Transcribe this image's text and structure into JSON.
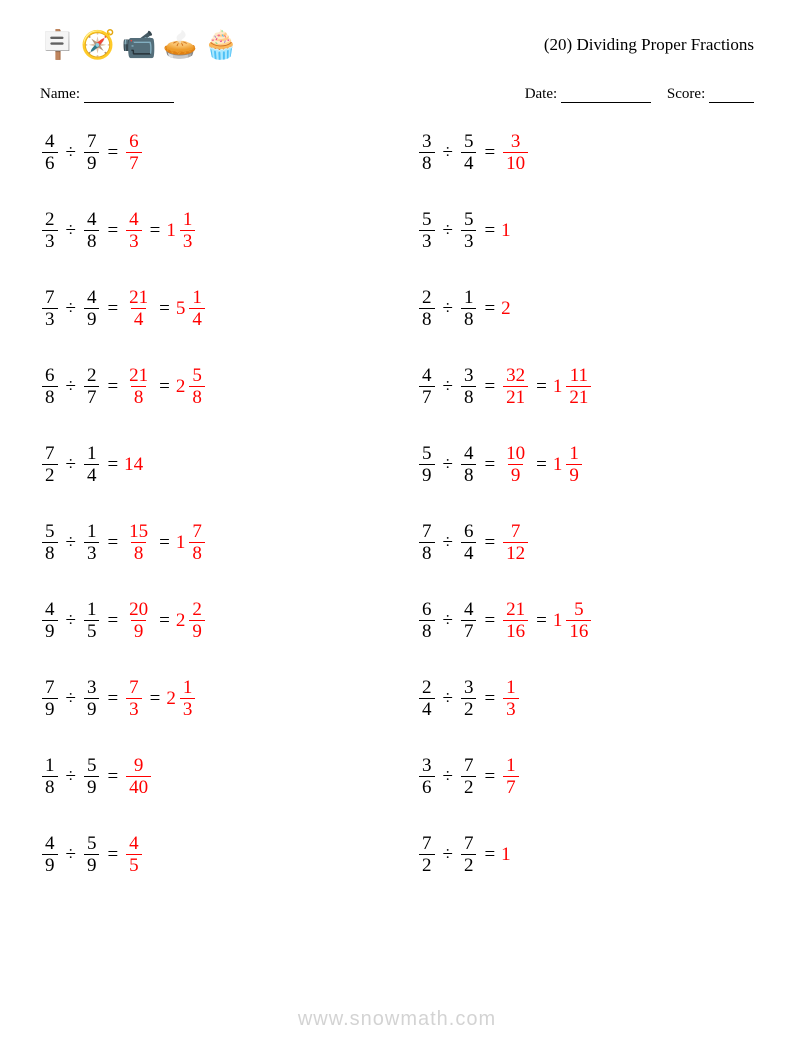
{
  "header": {
    "icons": [
      "🪧",
      "🧭",
      "📹",
      "🥧",
      "🧁"
    ],
    "title": "(20) Dividing Proper Fractions"
  },
  "info": {
    "name_label": "Name:",
    "date_label": "Date:",
    "score_label": "Score:"
  },
  "style": {
    "answer_color": "#ff0000",
    "text_color": "#000000",
    "problem_fontsize": 19,
    "op_symbol": "÷",
    "eq_symbol": "="
  },
  "problems": [
    {
      "a": {
        "n": 4,
        "d": 6
      },
      "b": {
        "n": 7,
        "d": 9
      },
      "ans": {
        "n": 6,
        "d": 7
      }
    },
    {
      "a": {
        "n": 3,
        "d": 8
      },
      "b": {
        "n": 5,
        "d": 4
      },
      "ans": {
        "n": 3,
        "d": 10
      }
    },
    {
      "a": {
        "n": 2,
        "d": 3
      },
      "b": {
        "n": 4,
        "d": 8
      },
      "ans": {
        "n": 4,
        "d": 3
      },
      "mixed": {
        "w": 1,
        "n": 1,
        "d": 3
      }
    },
    {
      "a": {
        "n": 5,
        "d": 3
      },
      "b": {
        "n": 5,
        "d": 3
      },
      "ans_int": 1
    },
    {
      "a": {
        "n": 7,
        "d": 3
      },
      "b": {
        "n": 4,
        "d": 9
      },
      "ans": {
        "n": 21,
        "d": 4
      },
      "mixed": {
        "w": 5,
        "n": 1,
        "d": 4
      }
    },
    {
      "a": {
        "n": 2,
        "d": 8
      },
      "b": {
        "n": 1,
        "d": 8
      },
      "ans_int": 2
    },
    {
      "a": {
        "n": 6,
        "d": 8
      },
      "b": {
        "n": 2,
        "d": 7
      },
      "ans": {
        "n": 21,
        "d": 8
      },
      "mixed": {
        "w": 2,
        "n": 5,
        "d": 8
      }
    },
    {
      "a": {
        "n": 4,
        "d": 7
      },
      "b": {
        "n": 3,
        "d": 8
      },
      "ans": {
        "n": 32,
        "d": 21
      },
      "mixed": {
        "w": 1,
        "n": 11,
        "d": 21
      }
    },
    {
      "a": {
        "n": 7,
        "d": 2
      },
      "b": {
        "n": 1,
        "d": 4
      },
      "ans_int": 14
    },
    {
      "a": {
        "n": 5,
        "d": 9
      },
      "b": {
        "n": 4,
        "d": 8
      },
      "ans": {
        "n": 10,
        "d": 9
      },
      "mixed": {
        "w": 1,
        "n": 1,
        "d": 9
      }
    },
    {
      "a": {
        "n": 5,
        "d": 8
      },
      "b": {
        "n": 1,
        "d": 3
      },
      "ans": {
        "n": 15,
        "d": 8
      },
      "mixed": {
        "w": 1,
        "n": 7,
        "d": 8
      }
    },
    {
      "a": {
        "n": 7,
        "d": 8
      },
      "b": {
        "n": 6,
        "d": 4
      },
      "ans": {
        "n": 7,
        "d": 12
      }
    },
    {
      "a": {
        "n": 4,
        "d": 9
      },
      "b": {
        "n": 1,
        "d": 5
      },
      "ans": {
        "n": 20,
        "d": 9
      },
      "mixed": {
        "w": 2,
        "n": 2,
        "d": 9
      }
    },
    {
      "a": {
        "n": 6,
        "d": 8
      },
      "b": {
        "n": 4,
        "d": 7
      },
      "ans": {
        "n": 21,
        "d": 16
      },
      "mixed": {
        "w": 1,
        "n": 5,
        "d": 16
      }
    },
    {
      "a": {
        "n": 7,
        "d": 9
      },
      "b": {
        "n": 3,
        "d": 9
      },
      "ans": {
        "n": 7,
        "d": 3
      },
      "mixed": {
        "w": 2,
        "n": 1,
        "d": 3
      }
    },
    {
      "a": {
        "n": 2,
        "d": 4
      },
      "b": {
        "n": 3,
        "d": 2
      },
      "ans": {
        "n": 1,
        "d": 3
      }
    },
    {
      "a": {
        "n": 1,
        "d": 8
      },
      "b": {
        "n": 5,
        "d": 9
      },
      "ans": {
        "n": 9,
        "d": 40
      }
    },
    {
      "a": {
        "n": 3,
        "d": 6
      },
      "b": {
        "n": 7,
        "d": 2
      },
      "ans": {
        "n": 1,
        "d": 7
      }
    },
    {
      "a": {
        "n": 4,
        "d": 9
      },
      "b": {
        "n": 5,
        "d": 9
      },
      "ans": {
        "n": 4,
        "d": 5
      }
    },
    {
      "a": {
        "n": 7,
        "d": 2
      },
      "b": {
        "n": 7,
        "d": 2
      },
      "ans_int": 1
    }
  ],
  "watermark": "www.snowmath.com"
}
